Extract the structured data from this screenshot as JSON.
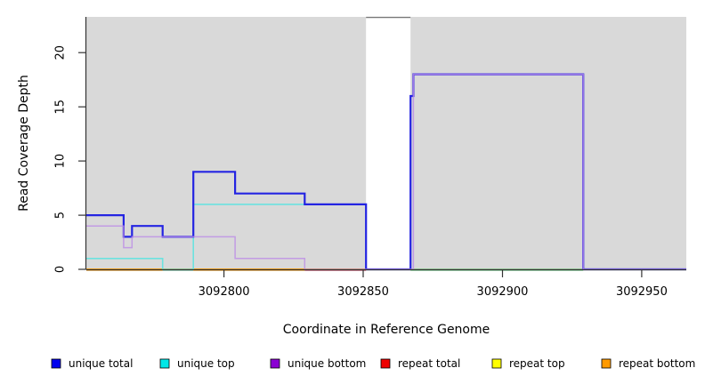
{
  "figure": {
    "background": "#ffffff",
    "plot_background": "#d9d9d9",
    "axis_color": "#333333",
    "gap_band_border": "#777777"
  },
  "chart_data": {
    "type": "line",
    "subtype": "step-coverage",
    "title": "",
    "xlabel": "Coordinate in Reference Genome",
    "ylabel": "Read Coverage Depth",
    "xlim": [
      3092750.6,
      3092966
    ],
    "ylim": [
      0,
      23.3
    ],
    "x_ticks": [
      3092800,
      3092850,
      3092900,
      3092950
    ],
    "y_ticks": [
      0,
      5,
      10,
      15,
      20
    ],
    "grid": false,
    "legend_position": "bottom",
    "gap_band": {
      "from": 3092851,
      "to": 3092867,
      "color": "#ffffff"
    },
    "series": [
      {
        "name": "repeat total",
        "color": "#ee1111",
        "width": 1.4,
        "opacity": 1,
        "points": [
          [
            3092750.6,
            0
          ],
          [
            3092966,
            0
          ]
        ]
      },
      {
        "name": "repeat top",
        "color": "#ffff00",
        "width": 1.4,
        "opacity": 1,
        "points": [
          [
            3092750.6,
            0
          ],
          [
            3092966,
            0
          ]
        ]
      },
      {
        "name": "repeat bottom",
        "color": "#ff9a00",
        "width": 1.6,
        "opacity": 1,
        "points": [
          [
            3092750.6,
            0
          ],
          [
            3092966,
            0
          ]
        ]
      },
      {
        "name": "unique top",
        "color": "#5fe2df",
        "width": 1.6,
        "opacity": 0.9,
        "points": [
          [
            3092750.6,
            1
          ],
          [
            3092778,
            0
          ],
          [
            3092789,
            6
          ],
          [
            3092851,
            0
          ],
          [
            3092966,
            0
          ]
        ]
      },
      {
        "name": "unique total",
        "color": "#2424e2",
        "width": 2.2,
        "opacity": 1,
        "points": [
          [
            3092750.6,
            5
          ],
          [
            3092764,
            3
          ],
          [
            3092767,
            4
          ],
          [
            3092778,
            3
          ],
          [
            3092789,
            9
          ],
          [
            3092804,
            7
          ],
          [
            3092829,
            6
          ],
          [
            3092851,
            0
          ],
          [
            3092867,
            16
          ],
          [
            3092868,
            18
          ],
          [
            3092929,
            0
          ],
          [
            3092966,
            0
          ]
        ]
      },
      {
        "name": "unique bottom",
        "color": "#bb8ce6",
        "width": 1.5,
        "opacity": 0.8,
        "points": [
          [
            3092750.6,
            4
          ],
          [
            3092764,
            2
          ],
          [
            3092767,
            3
          ],
          [
            3092804,
            1
          ],
          [
            3092829,
            0
          ],
          [
            3092868,
            18
          ],
          [
            3092929,
            0
          ],
          [
            3092966,
            0
          ]
        ]
      }
    ],
    "baseline_segments": [
      {
        "from": 3092750.6,
        "to": 3092778,
        "color": "#ff9a00"
      },
      {
        "from": 3092778,
        "to": 3092789,
        "color": "#6cc9a0"
      },
      {
        "from": 3092789,
        "to": 3092829,
        "color": "#ff9a00"
      },
      {
        "from": 3092829,
        "to": 3092851,
        "color": "#c23a55"
      },
      {
        "from": 3092867,
        "to": 3092929,
        "color": "#62c97e"
      }
    ]
  },
  "legend": {
    "items": [
      {
        "label": "unique total",
        "color": "#0000ee"
      },
      {
        "label": "unique top",
        "color": "#00e8e8"
      },
      {
        "label": "unique bottom",
        "color": "#8b00d3"
      },
      {
        "label": "repeat total",
        "color": "#ee0000"
      },
      {
        "label": "repeat top",
        "color": "#ffff00"
      },
      {
        "label": "repeat bottom",
        "color": "#ff9a00"
      }
    ]
  }
}
